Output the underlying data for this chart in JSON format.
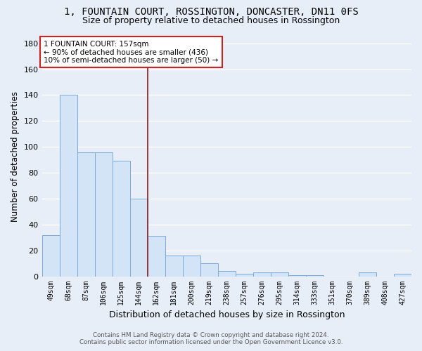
{
  "title": "1, FOUNTAIN COURT, ROSSINGTON, DONCASTER, DN11 0FS",
  "subtitle": "Size of property relative to detached houses in Rossington",
  "xlabel": "Distribution of detached houses by size in Rossington",
  "ylabel": "Number of detached properties",
  "categories": [
    "49sqm",
    "68sqm",
    "87sqm",
    "106sqm",
    "125sqm",
    "144sqm",
    "162sqm",
    "181sqm",
    "200sqm",
    "219sqm",
    "238sqm",
    "257sqm",
    "276sqm",
    "295sqm",
    "314sqm",
    "333sqm",
    "351sqm",
    "370sqm",
    "389sqm",
    "408sqm",
    "427sqm"
  ],
  "values": [
    32,
    140,
    96,
    96,
    89,
    60,
    31,
    16,
    16,
    10,
    4,
    2,
    3,
    3,
    1,
    1,
    0,
    0,
    3,
    0,
    2
  ],
  "bar_color": "#d4e4f7",
  "bar_edge_color": "#7aabdb",
  "vline_color": "#8b1a1a",
  "ylim": [
    0,
    185
  ],
  "yticks": [
    0,
    20,
    40,
    60,
    80,
    100,
    120,
    140,
    160,
    180
  ],
  "annotation_title": "1 FOUNTAIN COURT: 157sqm",
  "annotation_line1": "← 90% of detached houses are smaller (436)",
  "annotation_line2": "10% of semi-detached houses are larger (50) →",
  "footer1": "Contains HM Land Registry data © Crown copyright and database right 2024.",
  "footer2": "Contains public sector information licensed under the Open Government Licence v3.0.",
  "bg_color": "#e8eef8",
  "plot_bg_color": "#e8eef8",
  "title_fontsize": 10,
  "subtitle_fontsize": 9,
  "vline_bar_index": 6
}
